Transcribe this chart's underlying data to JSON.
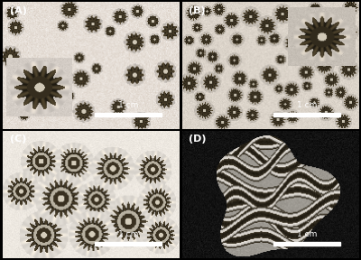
{
  "figure_width": 4.0,
  "figure_height": 2.88,
  "dpi": 100,
  "panels": [
    "A",
    "B",
    "C",
    "D"
  ],
  "panel_label_fontsize": 8,
  "panel_label_color": "#ffffff",
  "scale_bar_text": "1 cm",
  "scale_bar_fontsize": 6.5,
  "background_color": "#000000",
  "panel_A_bg": [
    0.9,
    0.87,
    0.84
  ],
  "panel_B_bg": [
    0.86,
    0.83,
    0.79
  ],
  "panel_C_bg": [
    0.93,
    0.91,
    0.88
  ],
  "panel_D_bg": [
    0.07,
    0.07,
    0.07
  ],
  "coral_dark": [
    0.28,
    0.24,
    0.16
  ],
  "coral_mid": [
    0.55,
    0.5,
    0.38
  ],
  "coral_light": [
    0.82,
    0.79,
    0.72
  ]
}
